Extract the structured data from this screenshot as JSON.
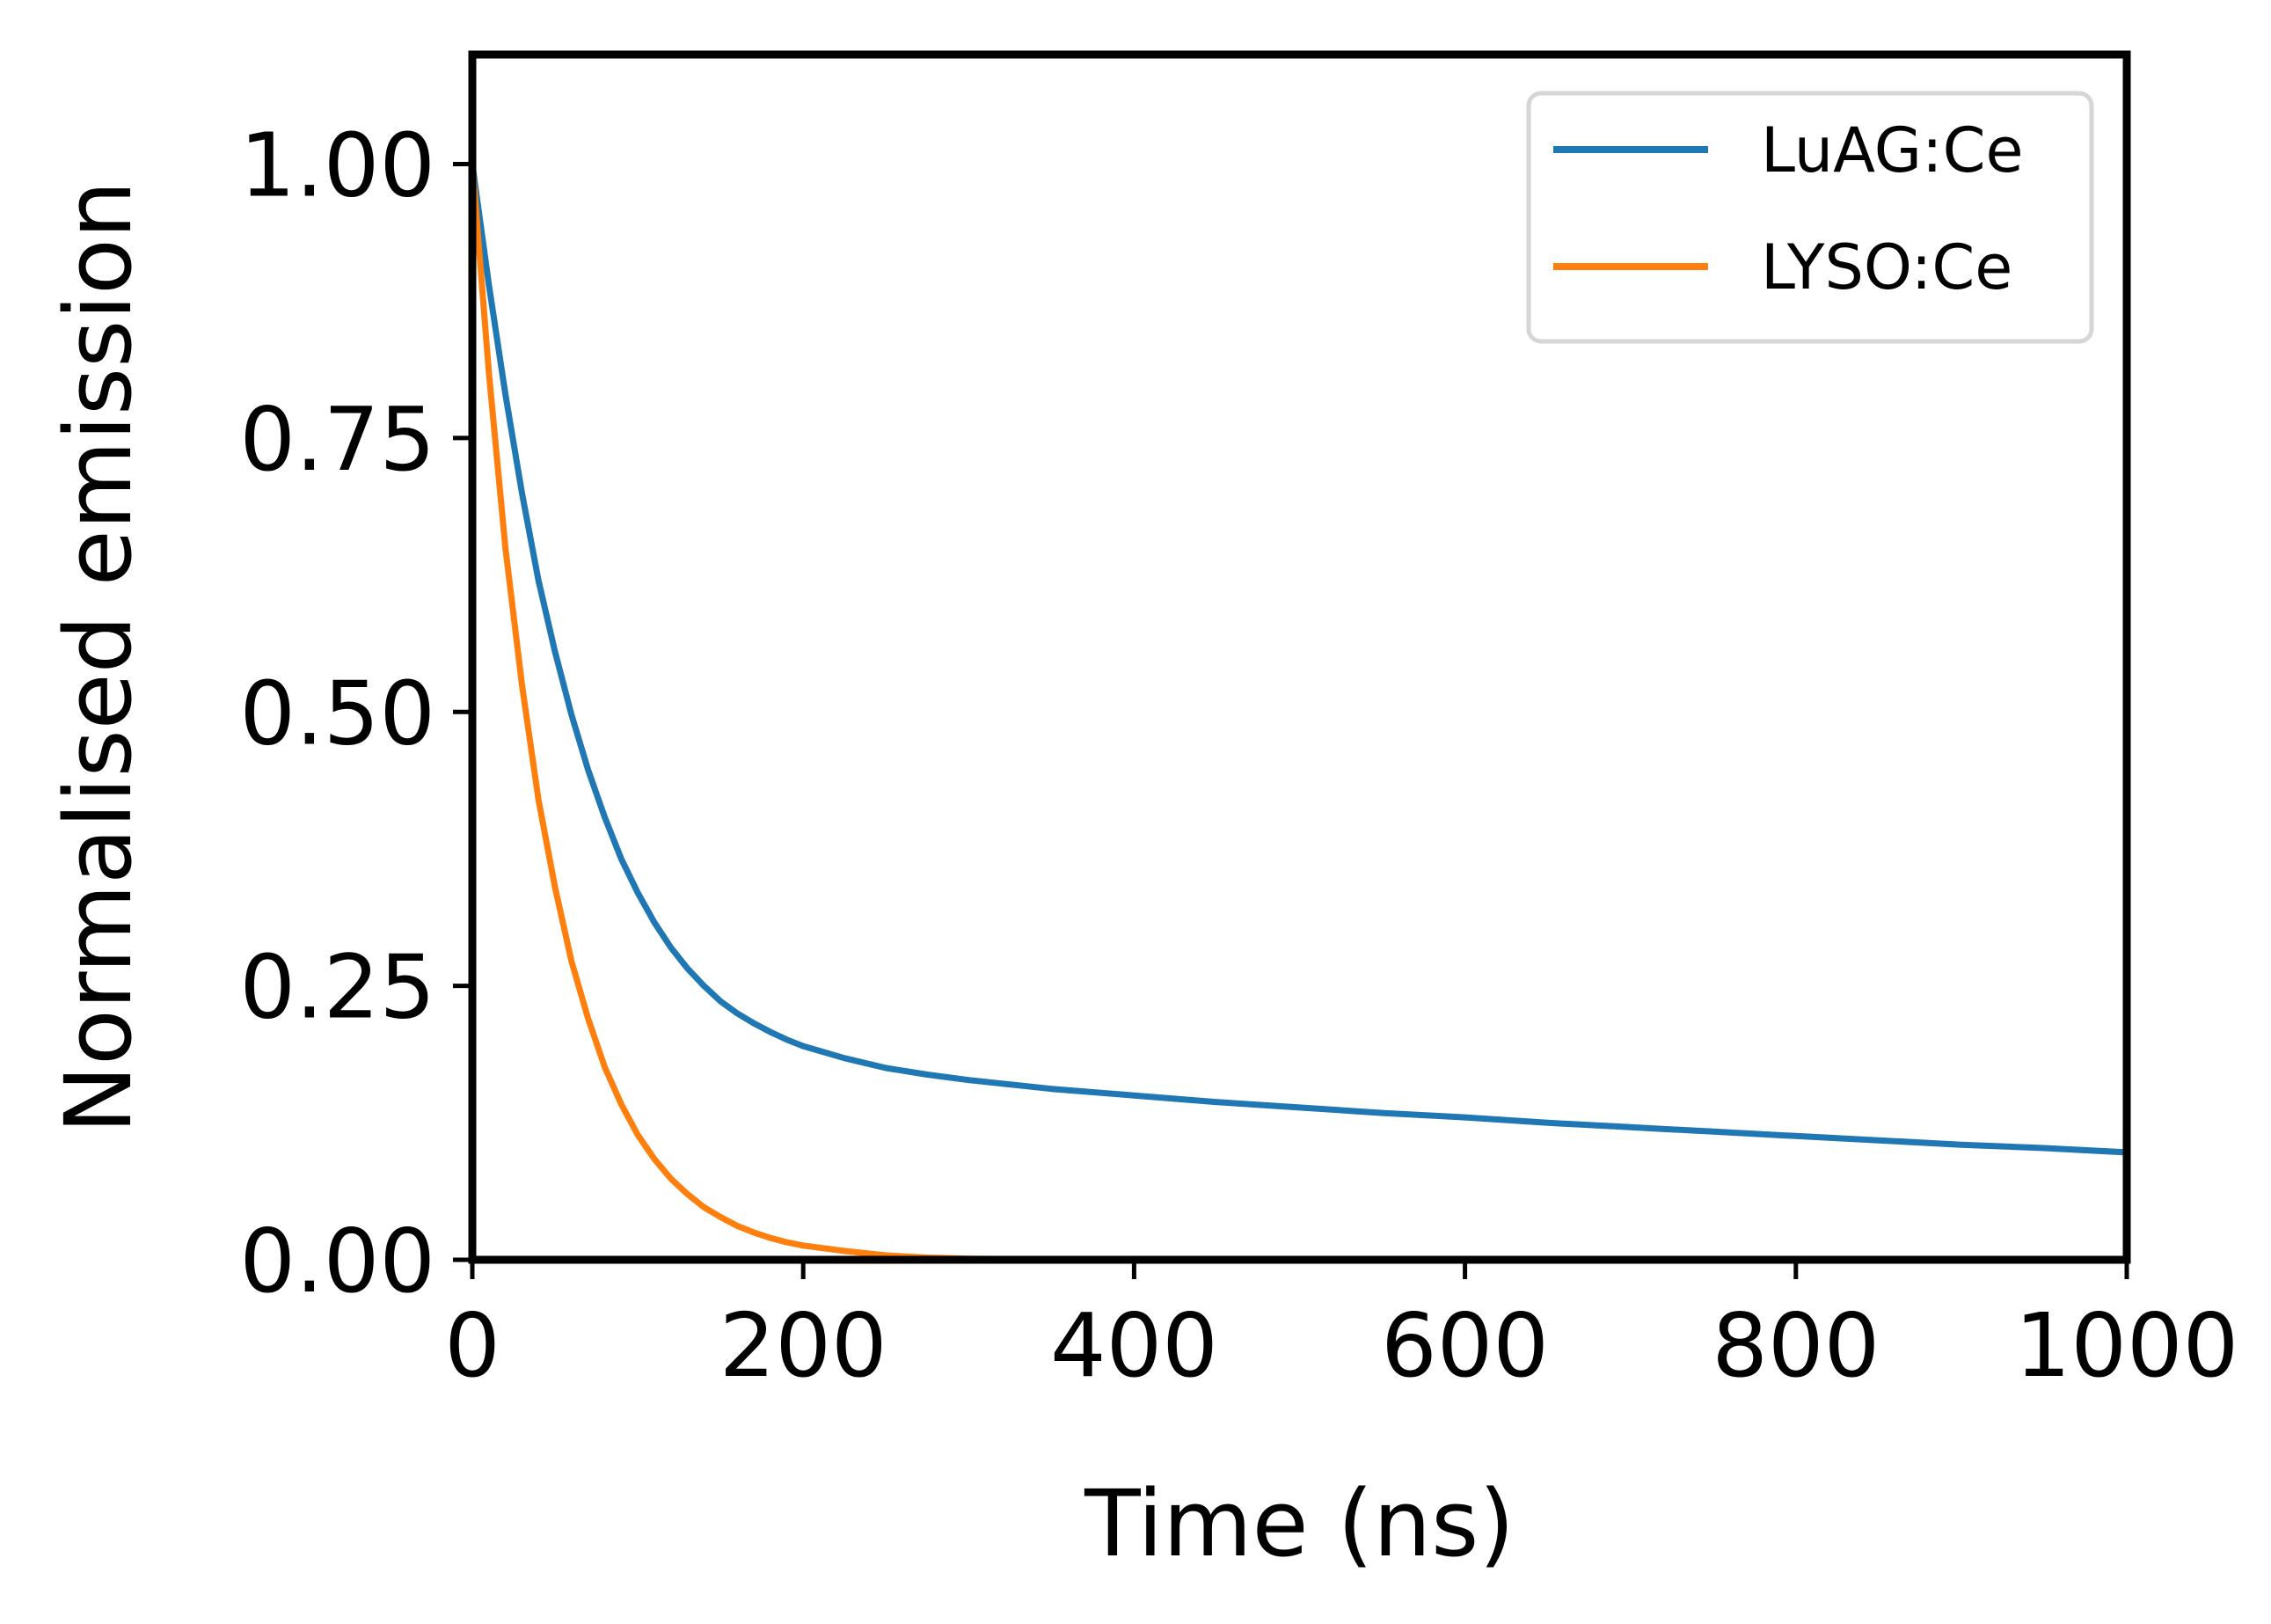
{
  "chart_data": {
    "type": "line",
    "xlabel": "Time (ns)",
    "ylabel": "Normalised emission",
    "xlim": [
      0,
      1000
    ],
    "ylim": [
      0,
      1.1
    ],
    "xticks": [
      0,
      200,
      400,
      600,
      800,
      1000
    ],
    "xtick_labels": [
      "0",
      "200",
      "400",
      "600",
      "800",
      "1000"
    ],
    "yticks": [
      0,
      0.25,
      0.5,
      0.75,
      1.0
    ],
    "ytick_labels": [
      "0.00",
      "0.25",
      "0.50",
      "0.75",
      "1.00"
    ],
    "grid": false,
    "legend": "top-right",
    "series": [
      {
        "name": "LuAG:Ce",
        "color": "#1f77b4",
        "x": [
          0,
          10,
          20,
          30,
          40,
          50,
          60,
          70,
          80,
          90,
          100,
          110,
          120,
          130,
          140,
          150,
          160,
          170,
          180,
          190,
          200,
          225,
          250,
          275,
          300,
          350,
          400,
          450,
          500,
          550,
          600,
          650,
          700,
          750,
          800,
          850,
          900,
          950,
          1000
        ],
        "y": [
          1.0,
          0.89,
          0.79,
          0.7,
          0.62,
          0.555,
          0.497,
          0.447,
          0.404,
          0.366,
          0.335,
          0.308,
          0.285,
          0.266,
          0.25,
          0.236,
          0.225,
          0.216,
          0.208,
          0.201,
          0.195,
          0.184,
          0.175,
          0.169,
          0.164,
          0.156,
          0.15,
          0.144,
          0.139,
          0.134,
          0.13,
          0.125,
          0.121,
          0.117,
          0.113,
          0.109,
          0.105,
          0.102,
          0.098
        ]
      },
      {
        "name": "LYSO:Ce",
        "color": "#ff7f0e",
        "x": [
          0,
          10,
          20,
          30,
          40,
          50,
          60,
          70,
          80,
          90,
          100,
          110,
          120,
          130,
          140,
          150,
          160,
          170,
          180,
          190,
          200,
          225,
          250,
          275,
          300,
          350,
          400,
          450,
          500,
          600,
          700,
          800,
          900,
          1000
        ],
        "y": [
          1.0,
          0.81,
          0.65,
          0.525,
          0.42,
          0.34,
          0.272,
          0.22,
          0.176,
          0.142,
          0.114,
          0.092,
          0.074,
          0.06,
          0.048,
          0.039,
          0.031,
          0.025,
          0.02,
          0.016,
          0.013,
          0.008,
          0.004,
          0.002,
          0.001,
          0.0005,
          0.0002,
          0.0001,
          0.0,
          0.0,
          0.0,
          0.0,
          0.0,
          0.0
        ]
      }
    ]
  }
}
